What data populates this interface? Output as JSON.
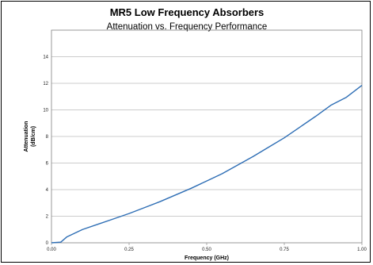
{
  "chart_data": {
    "type": "line",
    "title": "MR5 Low Frequency Absorbers",
    "subtitle": "Attenuation vs. Frequency Performance",
    "xlabel": "Frequency (GHz)",
    "ylabel_line1": "Attenuation",
    "ylabel_line2": "(dB/cm)",
    "xlim": [
      0,
      1
    ],
    "ylim": [
      0,
      16
    ],
    "x_ticks": [
      "0.00",
      "0.25",
      "0.50",
      "0.75",
      "1.00"
    ],
    "y_ticks": [
      "0",
      "2",
      "4",
      "6",
      "8",
      "10",
      "12",
      "14"
    ],
    "grid": true,
    "legend": "none",
    "series_color": "#2e6eb5",
    "series": [
      {
        "x": [
          0.0,
          0.03,
          0.05,
          0.1,
          0.15,
          0.2,
          0.25,
          0.3,
          0.35,
          0.4,
          0.45,
          0.5,
          0.55,
          0.6,
          0.65,
          0.7,
          0.75,
          0.8,
          0.85,
          0.9,
          0.95,
          1.0
        ],
        "values": [
          0.0,
          0.05,
          0.45,
          1.0,
          1.4,
          1.8,
          2.2,
          2.65,
          3.1,
          3.6,
          4.1,
          4.65,
          5.2,
          5.85,
          6.5,
          7.2,
          7.9,
          8.7,
          9.5,
          10.35,
          10.95,
          11.85
        ]
      }
    ]
  }
}
